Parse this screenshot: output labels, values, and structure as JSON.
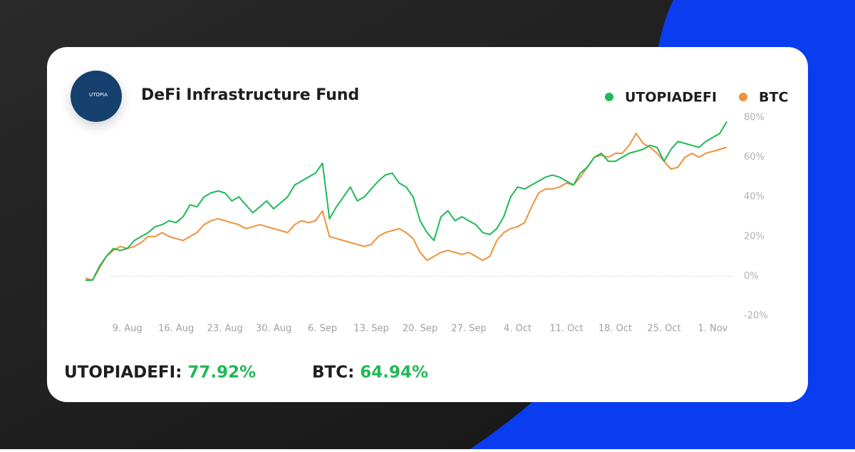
{
  "chart_data": {
    "type": "line",
    "title": "DeFi Infrastructure Fund",
    "logo_text": "UTOPIA",
    "categories": [
      null,
      null,
      null,
      null,
      null,
      null,
      "9. Aug",
      null,
      null,
      null,
      null,
      null,
      null,
      "16. Aug",
      null,
      null,
      null,
      null,
      null,
      null,
      "23. Aug",
      null,
      null,
      null,
      null,
      null,
      null,
      "30. Aug",
      null,
      null,
      null,
      null,
      null,
      null,
      "6. Sep",
      null,
      null,
      null,
      null,
      null,
      null,
      "13. Sep",
      null,
      null,
      null,
      null,
      null,
      null,
      "20. Sep",
      null,
      null,
      null,
      null,
      null,
      null,
      "27. Sep",
      null,
      null,
      null,
      null,
      null,
      null,
      "4. Oct",
      null,
      null,
      null,
      null,
      null,
      null,
      "11. Oct",
      null,
      null,
      null,
      null,
      null,
      null,
      "18. Oct",
      null,
      null,
      null,
      null,
      null,
      null,
      "25. Oct",
      null,
      null,
      null,
      null,
      null,
      null,
      "1. Nov",
      null,
      null
    ],
    "series": [
      {
        "name": "UTOPIADEFI",
        "color": "#1fb955",
        "values": [
          -2,
          -2,
          5,
          10,
          14,
          13,
          14,
          18,
          20,
          22,
          25,
          26,
          28,
          27,
          30,
          36,
          35,
          40,
          42,
          43,
          42,
          38,
          40,
          36,
          32,
          35,
          38,
          34,
          37,
          40,
          46,
          48,
          50,
          52,
          57,
          29,
          35,
          40,
          45,
          38,
          40,
          44,
          48,
          51,
          52,
          47,
          45,
          40,
          28,
          22,
          18,
          30,
          33,
          28,
          30,
          28,
          26,
          22,
          21,
          24,
          30,
          40,
          45,
          44,
          46,
          48,
          50,
          51,
          50,
          48,
          46,
          52,
          55,
          60,
          62,
          58,
          58,
          60,
          62,
          63,
          64,
          66,
          65,
          58,
          64,
          68,
          67,
          66,
          65,
          68,
          70,
          72,
          78
        ]
      },
      {
        "name": "BTC",
        "color": "#f0913a",
        "values": [
          -1,
          -2,
          4,
          10,
          13,
          15,
          14,
          15,
          17,
          20,
          20,
          22,
          20,
          19,
          18,
          20,
          22,
          26,
          28,
          29,
          28,
          27,
          26,
          24,
          25,
          26,
          25,
          24,
          23,
          22,
          26,
          28,
          27,
          28,
          33,
          20,
          19,
          18,
          17,
          16,
          15,
          16,
          20,
          22,
          23,
          24,
          22,
          19,
          12,
          8,
          10,
          12,
          13,
          12,
          11,
          12,
          10,
          8,
          10,
          18,
          22,
          24,
          25,
          27,
          35,
          42,
          44,
          44,
          45,
          47,
          46,
          50,
          55,
          60,
          61,
          60,
          62,
          62,
          66,
          72,
          67,
          65,
          62,
          58,
          54,
          55,
          60,
          62,
          60,
          62,
          63,
          64,
          65
        ]
      }
    ],
    "ylim": [
      -20,
      80
    ],
    "yticks": [
      {
        "value": -20,
        "label": "-20%"
      },
      {
        "value": 0,
        "label": "0%"
      },
      {
        "value": 20,
        "label": "20%"
      },
      {
        "value": 40,
        "label": "40%"
      },
      {
        "value": 60,
        "label": "60%"
      },
      {
        "value": 80,
        "label": "80%"
      }
    ],
    "zero_line": true,
    "summary": [
      {
        "name": "UTOPIADEFI:",
        "value_label": "77.92%"
      },
      {
        "name": "BTC:",
        "value_label": "64.94%"
      }
    ]
  }
}
